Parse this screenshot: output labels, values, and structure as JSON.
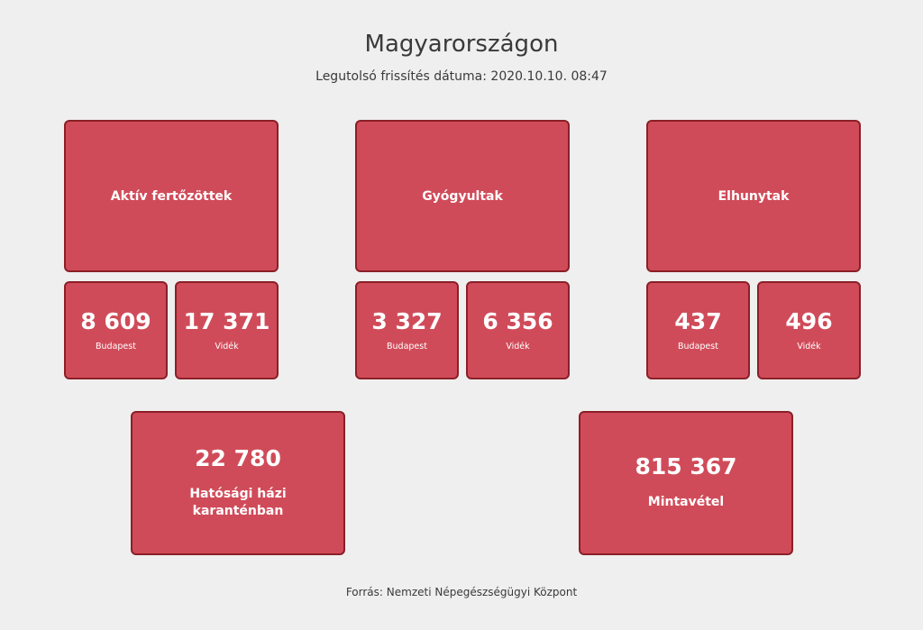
{
  "header": {
    "title": "Magyarországon",
    "updated": "Legutolsó frissítés dátuma: 2020.10.10. 08:47"
  },
  "groups": [
    {
      "label": "Aktív fertőzöttek",
      "budapest": "8 609",
      "videk": "17 371"
    },
    {
      "label": "Gyógyultak",
      "budapest": "3 327",
      "videk": "6 356"
    },
    {
      "label": "Elhunytak",
      "budapest": "437",
      "videk": "496"
    }
  ],
  "region_labels": {
    "budapest": "Budapest",
    "videk": "Vidék"
  },
  "extra": [
    {
      "value": "22 780",
      "label": "Hatósági házi karanténban"
    },
    {
      "value": "815 367",
      "label": "Mintavétel"
    }
  ],
  "footer": "Forrás: Nemzeti Népegészségügyi Központ",
  "colors": {
    "card": "#d04b59",
    "card_border": "#8b1f27",
    "background": "#efefef"
  }
}
